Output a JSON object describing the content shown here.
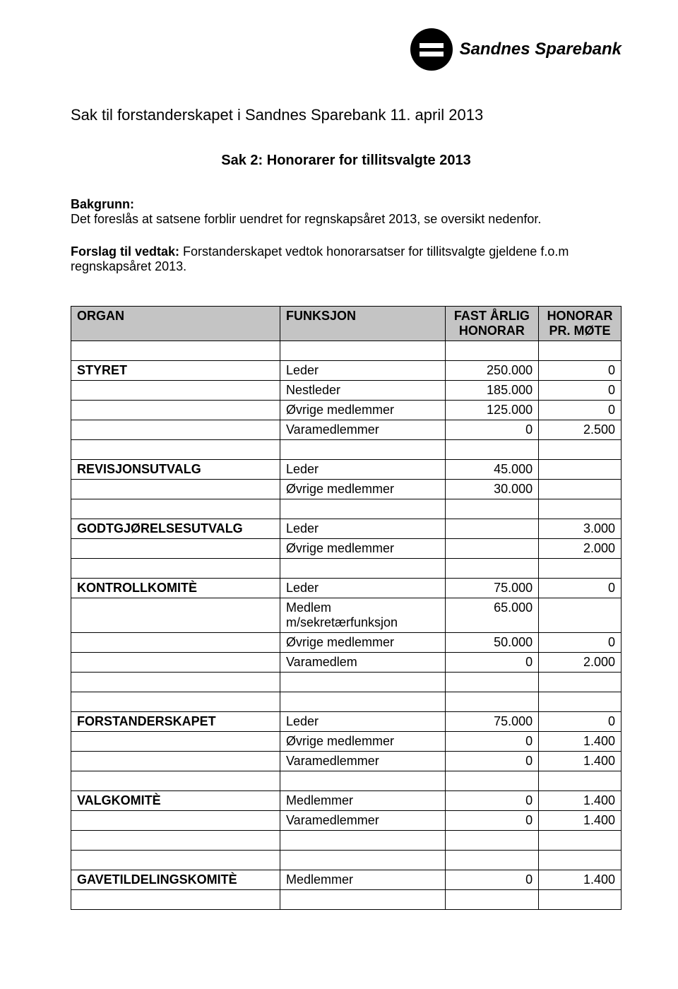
{
  "brand": {
    "name": "Sandnes Sparebank"
  },
  "doc_title": "Sak til forstanderskapet i Sandnes Sparebank 11. april 2013",
  "sak_title": "Sak 2: Honorarer for tillitsvalgte 2013",
  "bakgrunn_label": "Bakgrunn:",
  "bakgrunn_text": "Det foreslås at satsene forblir uendret for regnskapsåret 2013, se oversikt nedenfor.",
  "forslag_label": "Forslag til vedtak: ",
  "forslag_text": "Forstanderskapet vedtok honorarsatser for tillitsvalgte gjeldene f.o.m regnskapsåret 2013.",
  "table": {
    "headers": {
      "organ": "ORGAN",
      "funksjon": "FUNKSJON",
      "fast_arlig": "FAST ÅRLIG HONORAR",
      "honorar_mote": "HONORAR PR. MØTE"
    },
    "rows": [
      {
        "type": "spacer"
      },
      {
        "c1": "STYRET",
        "c2": "Leder",
        "c3": "250.000",
        "c4": "0"
      },
      {
        "c1": "",
        "c2": "Nestleder",
        "c3": "185.000",
        "c4": "0"
      },
      {
        "c1": "",
        "c2": "Øvrige medlemmer",
        "c3": "125.000",
        "c4": "0"
      },
      {
        "c1": "",
        "c2": "Varamedlemmer",
        "c3": "0",
        "c4": "2.500"
      },
      {
        "type": "spacer"
      },
      {
        "c1": "REVISJONSUTVALG",
        "c2": "Leder",
        "c3": "45.000",
        "c4": ""
      },
      {
        "c1": "",
        "c2": "Øvrige medlemmer",
        "c3": "30.000",
        "c4": ""
      },
      {
        "type": "spacer"
      },
      {
        "c1": "GODTGJØRELSESUTVALG",
        "c2": "Leder",
        "c3": "",
        "c4": "3.000"
      },
      {
        "c1": "",
        "c2": "Øvrige medlemmer",
        "c3": "",
        "c4": "2.000"
      },
      {
        "type": "spacer"
      },
      {
        "c1": "KONTROLLKOMITÈ",
        "c2": "Leder",
        "c3": "75.000",
        "c4": "0"
      },
      {
        "c1": "",
        "c2": "Medlem m/sekretærfunksjon",
        "c3": "65.000",
        "c4": ""
      },
      {
        "c1": "",
        "c2": "Øvrige medlemmer",
        "c3": "50.000",
        "c4": "0"
      },
      {
        "c1": "",
        "c2": "Varamedlem",
        "c3": "0",
        "c4": "2.000"
      },
      {
        "type": "spacer"
      },
      {
        "type": "spacer"
      },
      {
        "c1": "FORSTANDERSKAPET",
        "c2": "Leder",
        "c3": "75.000",
        "c4": "0"
      },
      {
        "c1": "",
        "c2": "Øvrige medlemmer",
        "c3": "0",
        "c4": "1.400"
      },
      {
        "c1": "",
        "c2": "Varamedlemmer",
        "c3": "0",
        "c4": "1.400"
      },
      {
        "type": "spacer"
      },
      {
        "c1": "VALGKOMITÈ",
        "c2": "Medlemmer",
        "c3": "0",
        "c4": "1.400"
      },
      {
        "c1": "",
        "c2": "Varamedlemmer",
        "c3": "0",
        "c4": "1.400"
      },
      {
        "type": "spacer"
      },
      {
        "type": "spacer"
      },
      {
        "c1": "GAVETILDELINGSKOMITÈ",
        "c2": "Medlemmer",
        "c3": "0",
        "c4": "1.400"
      },
      {
        "type": "spacer"
      }
    ]
  },
  "colors": {
    "header_bg": "#c4c4c4",
    "border": "#000000",
    "text": "#000000",
    "background": "#ffffff",
    "logo": "#000000"
  }
}
